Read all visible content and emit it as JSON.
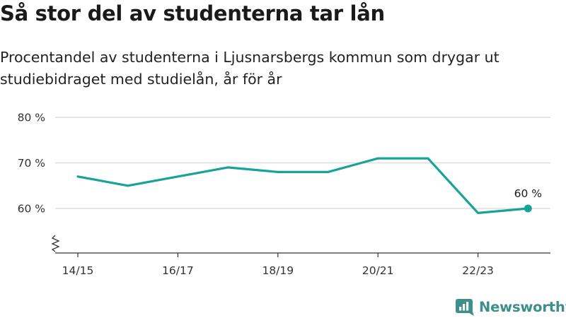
{
  "header": {
    "title": "Så stor del av studenterna tar lån",
    "subtitle": "Procentandel av studenterna i Ljusnarsbergs kommun som drygar ut studiebidraget med studielån, år för år"
  },
  "brand": {
    "name": "Newsworthy",
    "logo_icon": "bar-chart-logo-icon",
    "color": "#3c8f8a"
  },
  "chart_data": {
    "type": "line",
    "title": "Så stor del av studenterna tar lån",
    "subtitle": "Procentandel av studenterna i Ljusnarsbergs kommun som drygar ut studiebidraget med studielån, år för år",
    "x": [
      "14/15",
      "15/16",
      "16/17",
      "17/18",
      "18/19",
      "19/20",
      "20/21",
      "21/22",
      "22/23",
      "23/24"
    ],
    "series": [
      {
        "values": [
          67,
          65,
          67,
          69,
          68,
          68,
          71,
          71,
          59,
          60
        ],
        "color": "#17a398"
      }
    ],
    "x_tick_labels": [
      "14/15",
      "16/17",
      "18/19",
      "20/21",
      "22/23"
    ],
    "y_ticks": [
      60,
      70,
      80
    ],
    "y_tick_labels": [
      "60 %",
      "70 %",
      "80 %"
    ],
    "ylim": [
      50,
      80
    ],
    "y_axis_break": true,
    "grid": "horizontal",
    "end_label": "60 %",
    "xlabel": "",
    "ylabel": ""
  }
}
